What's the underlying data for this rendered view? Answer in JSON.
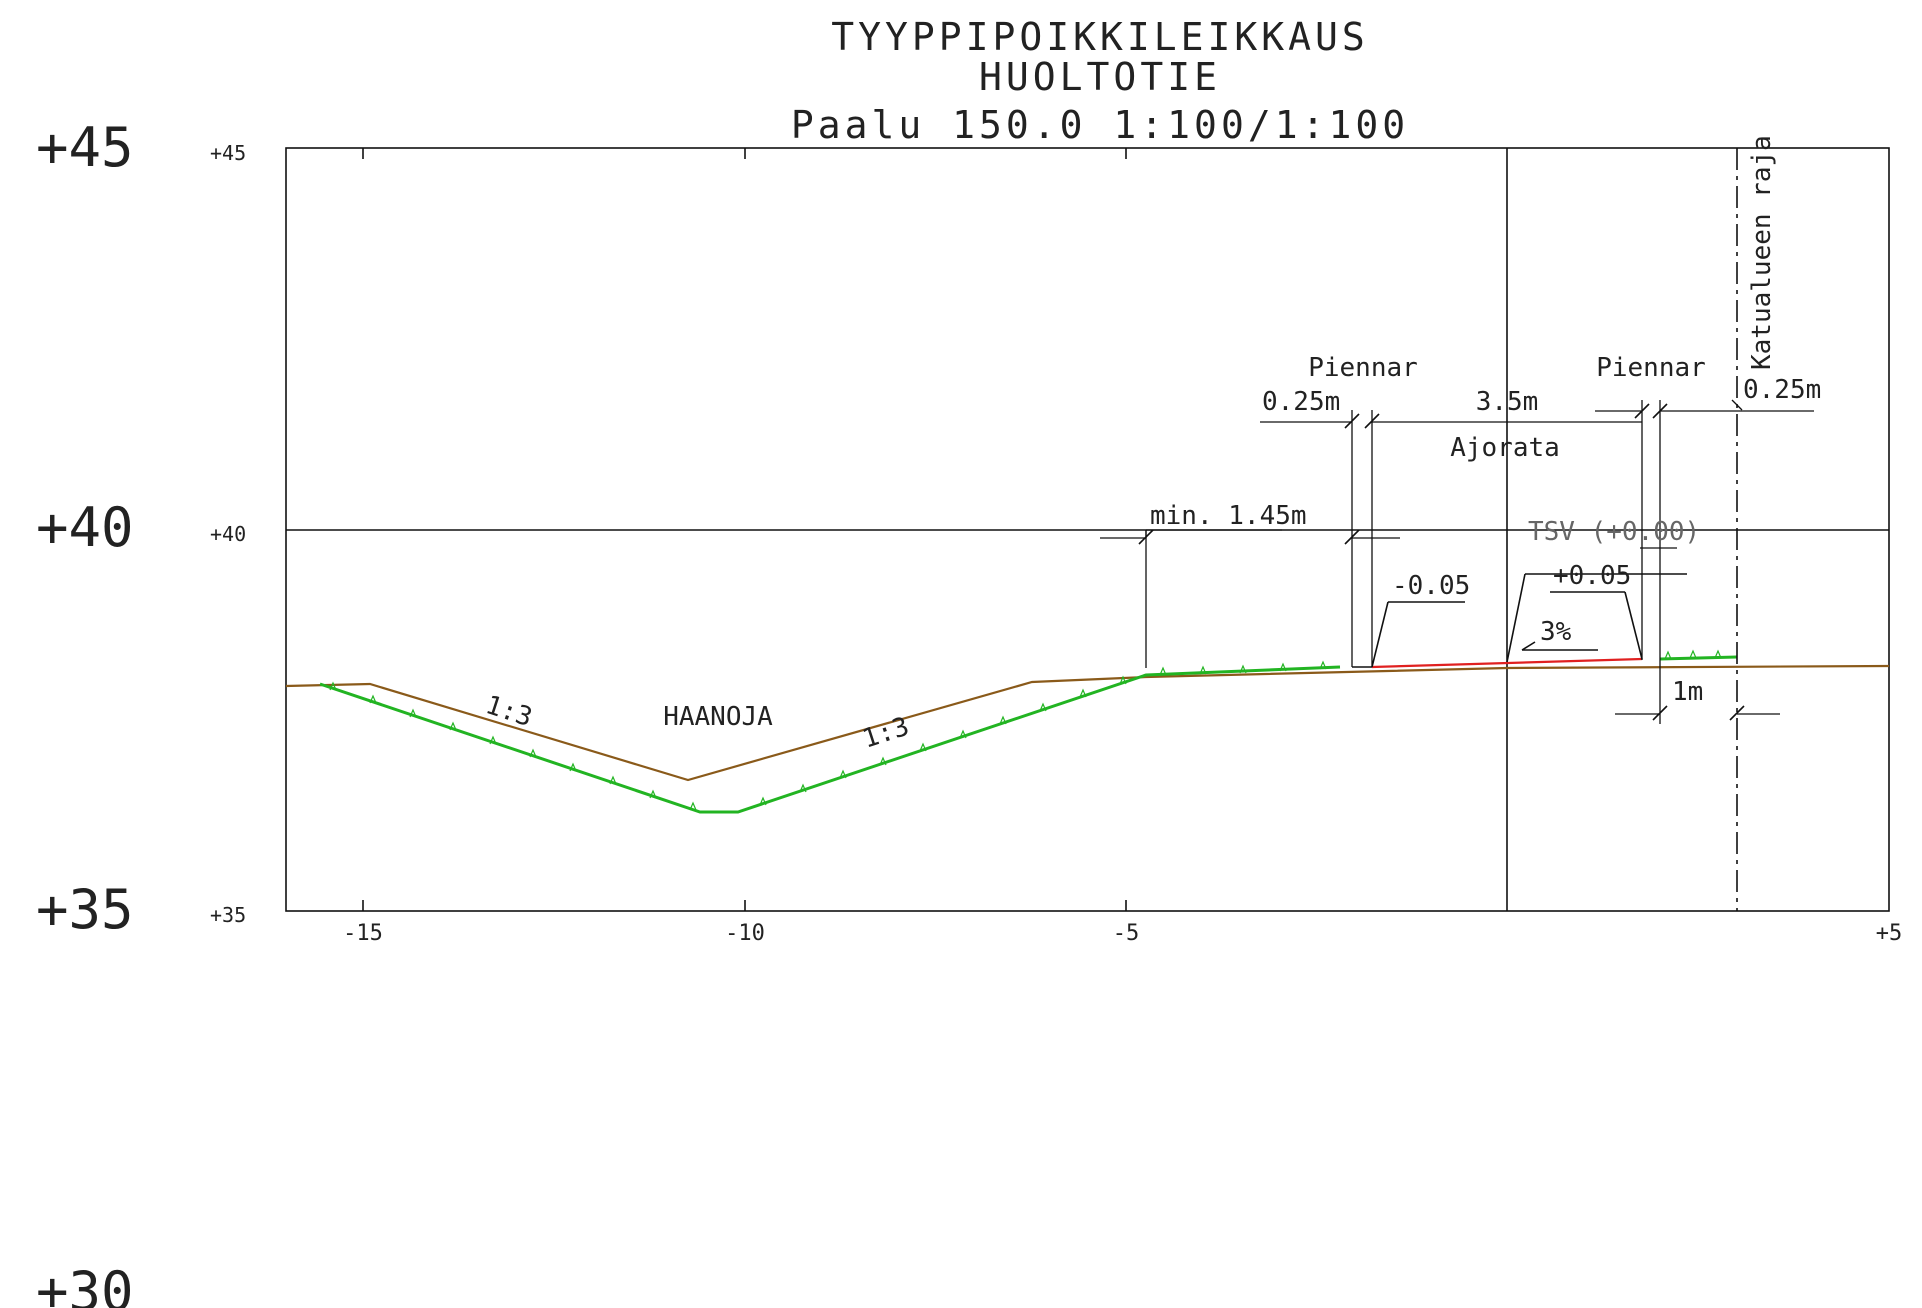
{
  "title": {
    "line1": "TYYPPIPOIKKILEIKKAUS",
    "line2": "HUOLTOTIE",
    "line3": "Paalu 150.0  1:100/1:100"
  },
  "elevations_big": [
    "+45",
    "+40",
    "+35",
    "+30"
  ],
  "elevations_small": [
    "+45",
    "+40",
    "+35"
  ],
  "x_ticks": [
    "-15",
    "-10",
    "-5",
    "+5"
  ],
  "labels": {
    "piennar_left": "Piennar",
    "piennar_right": "Piennar",
    "dim_025_left": "0.25m",
    "dim_35": "3.5m",
    "dim_025_right": "0.25m",
    "ajorata": "Ajorata",
    "min_145": "min. 1.45m",
    "minus_005": "-0.05",
    "tsv": "TSV (+0.00)",
    "plus_005": "+0.05",
    "slope_3pct": "3%",
    "dim_1m": "1m",
    "katualueen_raja": "Katualueen raja",
    "haanoja": "HAANOJA",
    "slope_13_left": "1:3",
    "slope_13_right": "1:3"
  },
  "colors": {
    "ground_line": "#8a5a1a",
    "grass": "#22b422",
    "road_surface": "#e02020"
  }
}
